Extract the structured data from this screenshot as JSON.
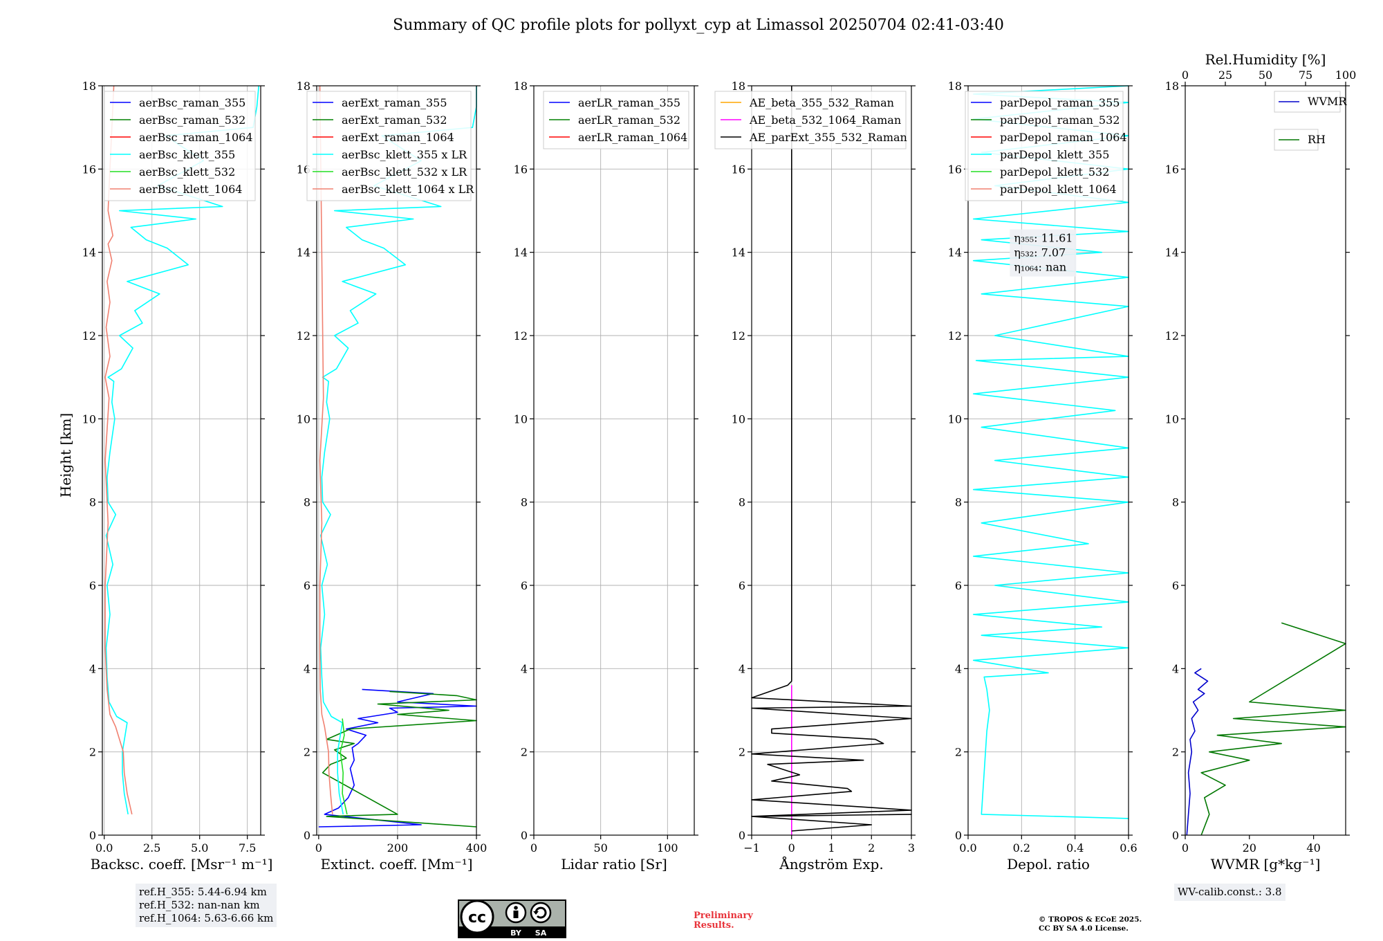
{
  "title": "Summary of QC profile plots for pollyxt_cyp at Limassol 20250704 02:41-03:40",
  "y_axis_label": "Height [km]",
  "y_ticks": [
    0,
    2,
    4,
    6,
    8,
    10,
    12,
    14,
    16,
    18
  ],
  "chart_data": [
    {
      "type": "line",
      "name": "backscatter",
      "xlabel": "Backsc. coeff. [Msr⁻¹ m⁻¹]",
      "ylabel": "Height [km]",
      "xlim": [
        -0.1,
        8.2
      ],
      "ylim": [
        0,
        18
      ],
      "xticks": [
        0,
        2.5,
        5,
        7.5
      ],
      "xtick_labels": [
        "0.0",
        "2.5",
        "5.0",
        "7.5"
      ],
      "grid": true,
      "legend_location": "top-right",
      "series": [
        {
          "name": "aerBsc_raman_355",
          "color": "#0000ff",
          "x": [],
          "y": []
        },
        {
          "name": "aerBsc_raman_532",
          "color": "#008000",
          "x": [],
          "y": []
        },
        {
          "name": "aerBsc_raman_1064",
          "color": "#ff0000",
          "x": [],
          "y": []
        },
        {
          "name": "aerBsc_klett_355",
          "color": "#00ffff",
          "x": [
            1.25,
            1.05,
            0.95,
            0.95,
            1.2,
            0.65,
            0.25,
            0.15,
            0.1,
            0.3,
            0.15,
            0.45,
            0.1,
            0.6,
            0.2,
            0.15,
            0.3,
            0.55,
            0.4,
            0.5,
            0.2,
            0.9,
            1.5,
            0.8,
            2.0,
            1.6,
            2.9,
            1.2,
            4.4,
            3.3,
            2.2,
            1.4,
            4.8,
            0.8,
            6.2,
            2.8,
            5.2,
            3.2,
            7.8,
            8.0,
            8.1
          ],
          "y": [
            0.5,
            1.0,
            1.5,
            2.0,
            2.7,
            2.85,
            3.2,
            3.8,
            4.5,
            5.3,
            6.0,
            6.5,
            7.2,
            7.7,
            8.0,
            8.6,
            9.2,
            10.0,
            10.4,
            10.9,
            11.0,
            11.2,
            11.7,
            12.0,
            12.3,
            12.6,
            13.0,
            13.3,
            13.7,
            14.1,
            14.3,
            14.6,
            14.8,
            15.0,
            15.1,
            15.6,
            16.2,
            16.8,
            17.0,
            17.5,
            18.0
          ]
        },
        {
          "name": "aerBsc_klett_532",
          "color": "#22dd22",
          "x": [],
          "y": []
        },
        {
          "name": "aerBsc_klett_1064",
          "color": "#f08070",
          "x": [
            1.45,
            1.2,
            1.05,
            1.0,
            0.6,
            0.3,
            0.15,
            0.05,
            0.05,
            0.2,
            0.05,
            0.25,
            0.05,
            0.3,
            0.1,
            0.3,
            0.15,
            0.4,
            0.2,
            0.45,
            0.2,
            0.3,
            0.5
          ],
          "y": [
            0.5,
            1.0,
            1.5,
            2.0,
            2.6,
            2.9,
            3.5,
            4.5,
            6.0,
            7.5,
            9.0,
            10.5,
            11.0,
            11.5,
            12.2,
            12.8,
            13.3,
            13.8,
            14.2,
            14.4,
            15.0,
            16.0,
            18.0
          ]
        }
      ],
      "reference_heights": [
        "ref.H_355: 5.44-6.94 km",
        "ref.H_532: nan-nan km",
        "ref.H_1064: 5.63-6.66 km"
      ]
    },
    {
      "type": "line",
      "name": "extinction",
      "xlabel": "Extinct. coeff. [Mm⁻¹]",
      "ylabel": "",
      "xlim": [
        -5,
        400
      ],
      "ylim": [
        0,
        18
      ],
      "xticks": [
        0,
        200,
        400
      ],
      "xtick_labels": [
        "0",
        "200",
        "400"
      ],
      "grid": true,
      "legend_location": "top-right",
      "series": [
        {
          "name": "aerExt_raman_355",
          "color": "#0000ff",
          "x": [
            0,
            260,
            15,
            50,
            75,
            90,
            80,
            90,
            85,
            100,
            120,
            70,
            150,
            100,
            200,
            180,
            400,
            200,
            290,
            110
          ],
          "y": [
            0.2,
            0.25,
            0.5,
            0.65,
            0.9,
            1.2,
            1.6,
            1.8,
            2.1,
            2.2,
            2.4,
            2.55,
            2.7,
            2.8,
            2.95,
            3.05,
            3.1,
            3.2,
            3.4,
            3.5
          ]
        },
        {
          "name": "aerExt_raman_532",
          "color": "#008000",
          "x": [
            400,
            20,
            200,
            10,
            30,
            70,
            40,
            90,
            20,
            80,
            400,
            200,
            330,
            150,
            400,
            350,
            180
          ],
          "y": [
            0.2,
            0.45,
            0.5,
            1.5,
            1.7,
            1.85,
            2.05,
            2.2,
            2.3,
            2.55,
            2.75,
            2.9,
            3.0,
            3.15,
            3.25,
            3.35,
            3.45
          ]
        },
        {
          "name": "aerExt_raman_1064",
          "color": "#ff0000",
          "x": [],
          "y": []
        },
        {
          "name": "aerBsc_klett_355 x LR",
          "color": "#00ffff",
          "x": [
            62,
            52,
            48,
            48,
            60,
            32,
            12,
            8,
            5,
            15,
            8,
            22,
            5,
            30,
            10,
            8,
            15,
            28,
            20,
            25,
            10,
            45,
            75,
            40,
            100,
            80,
            145,
            60,
            220,
            165,
            110,
            70,
            240,
            40,
            310,
            140,
            260,
            160,
            390,
            400,
            400
          ],
          "y": [
            0.5,
            1.0,
            1.5,
            2.0,
            2.7,
            2.85,
            3.2,
            3.8,
            4.5,
            5.3,
            6.0,
            6.5,
            7.2,
            7.7,
            8.0,
            8.6,
            9.2,
            10.0,
            10.4,
            10.9,
            11.0,
            11.2,
            11.7,
            12.0,
            12.3,
            12.6,
            13.0,
            13.3,
            13.7,
            14.1,
            14.3,
            14.6,
            14.8,
            15.0,
            15.1,
            15.6,
            16.2,
            16.8,
            17.0,
            17.5,
            18.0
          ]
        },
        {
          "name": "aerBsc_klett_532 x LR",
          "color": "#22dd22",
          "x": [
            72,
            60,
            62,
            55,
            65,
            60
          ],
          "y": [
            0.5,
            1.0,
            1.5,
            2.0,
            2.4,
            2.8
          ]
        },
        {
          "name": "aerBsc_klett_1064 x LR",
          "color": "#f08070",
          "x": [
            35,
            30,
            26,
            25,
            15,
            8,
            4,
            3,
            3,
            8,
            3,
            12,
            3
          ],
          "y": [
            0.5,
            1.0,
            1.5,
            2.0,
            2.6,
            2.9,
            3.5,
            4.5,
            6.0,
            7.5,
            9.0,
            10.5,
            18.0
          ]
        }
      ]
    },
    {
      "type": "line",
      "name": "lidar_ratio",
      "xlabel": "Lidar ratio [Sr]",
      "ylabel": "",
      "xlim": [
        0,
        120
      ],
      "ylim": [
        0,
        18
      ],
      "xticks": [
        0,
        50,
        100
      ],
      "xtick_labels": [
        "0",
        "50",
        "100"
      ],
      "grid": true,
      "legend_location": "top-right",
      "series": [
        {
          "name": "aerLR_raman_355",
          "color": "#0000ff",
          "x": [],
          "y": []
        },
        {
          "name": "aerLR_raman_532",
          "color": "#008000",
          "x": [],
          "y": []
        },
        {
          "name": "aerLR_raman_1064",
          "color": "#ff0000",
          "x": [],
          "y": []
        }
      ]
    },
    {
      "type": "line",
      "name": "angstrom",
      "xlabel": "Ångström Exp.",
      "ylabel": "",
      "xlim": [
        -1,
        3
      ],
      "ylim": [
        0,
        18
      ],
      "xticks": [
        -1,
        0,
        1,
        2,
        3
      ],
      "xtick_labels": [
        "−1",
        "0",
        "1",
        "2",
        "3"
      ],
      "grid": true,
      "legend_location": "top-right",
      "series": [
        {
          "name": "AE_beta_355_532_Raman",
          "color": "#ffa500",
          "x": [],
          "y": []
        },
        {
          "name": "AE_beta_532_1064_Raman",
          "color": "#ff00ff",
          "x": [
            0,
            0
          ],
          "y": [
            0,
            3.6
          ]
        },
        {
          "name": "AE_parExt_355_532_Raman",
          "color": "#000000",
          "x": [
            0,
            2.0,
            -1,
            3.0,
            -1,
            3.0,
            -1,
            1.5,
            1.4,
            -0.5,
            0.2,
            -0.6,
            1.8,
            -1,
            2.3,
            2.1,
            -0.5,
            -0.5,
            3.0,
            -1,
            3.0,
            -1,
            -0.1,
            0,
            0
          ],
          "y": [
            0.1,
            0.25,
            0.45,
            0.5,
            0.45,
            0.6,
            0.85,
            1.05,
            1.12,
            1.3,
            1.45,
            1.7,
            1.8,
            1.95,
            2.2,
            2.3,
            2.45,
            2.55,
            2.8,
            3.05,
            3.1,
            3.3,
            3.6,
            3.7,
            18.0
          ]
        }
      ]
    },
    {
      "type": "line",
      "name": "depolarization",
      "xlabel": "Depol. ratio",
      "ylabel": "",
      "xlim": [
        0,
        0.6
      ],
      "ylim": [
        0,
        18
      ],
      "xticks": [
        0,
        0.2,
        0.4,
        0.6
      ],
      "xtick_labels": [
        "0.0",
        "0.2",
        "0.4",
        "0.6"
      ],
      "grid": true,
      "legend_location": "top-right",
      "annotations": [
        "η₃₅₅: 11.61",
        "η₅₃₂: 7.07",
        "η₁₀₆₄: nan"
      ],
      "series": [
        {
          "name": "parDepol_raman_355",
          "color": "#0000ff",
          "x": [],
          "y": []
        },
        {
          "name": "parDepol_raman_532",
          "color": "#008000",
          "x": [],
          "y": []
        },
        {
          "name": "parDepol_raman_1064",
          "color": "#ff0000",
          "x": [],
          "y": []
        },
        {
          "name": "parDepol_klett_355",
          "color": "#00ffff",
          "x": [
            0.6,
            0.05,
            0.06,
            0.07,
            0.08,
            0.07,
            0.06,
            0.3,
            0.02,
            0.6,
            0.05,
            0.5,
            0.02,
            0.6,
            0.1,
            0.6,
            0.02,
            0.45,
            0.05,
            0.6,
            0.02,
            0.6,
            0.1,
            0.6,
            0.05,
            0.55,
            0.02,
            0.6,
            0.03,
            0.6,
            0.1,
            0.6,
            0.05,
            0.6,
            0.02,
            0.5,
            0.05,
            0.6,
            0.02,
            0.6,
            0.1,
            0.6,
            0.05,
            0.6,
            0.02,
            0.6,
            0.02,
            0.6
          ],
          "y": [
            0.4,
            0.5,
            1.5,
            2.5,
            3.0,
            3.5,
            3.8,
            3.9,
            4.2,
            4.5,
            4.8,
            5.0,
            5.3,
            5.6,
            6.0,
            6.3,
            6.7,
            7.0,
            7.5,
            8.0,
            8.3,
            8.6,
            9.0,
            9.3,
            9.8,
            10.2,
            10.6,
            11.0,
            11.4,
            11.5,
            12.0,
            12.7,
            13.0,
            13.4,
            13.8,
            14.0,
            14.3,
            14.5,
            14.8,
            15.2,
            15.6,
            16.0,
            16.4,
            16.8,
            17.2,
            17.6,
            17.8,
            18.0
          ]
        },
        {
          "name": "parDepol_klett_532",
          "color": "#22dd22",
          "x": [],
          "y": []
        },
        {
          "name": "parDepol_klett_1064",
          "color": "#f08070",
          "x": [],
          "y": []
        }
      ]
    },
    {
      "type": "line",
      "name": "water_vapor",
      "xlabel": "WVMR [g*kg⁻¹]",
      "ylabel": "",
      "xlim": [
        0,
        50
      ],
      "ylim": [
        0,
        18
      ],
      "xticks": [
        0,
        20,
        40
      ],
      "xtick_labels": [
        "0",
        "20",
        "40"
      ],
      "top_xlabel": "Rel.Humidity [%]",
      "top_xlim": [
        0,
        100
      ],
      "top_xticks": [
        0,
        25,
        50,
        75,
        100
      ],
      "top_xtick_labels": [
        "0",
        "25",
        "50",
        "75",
        "100"
      ],
      "grid": false,
      "legend_location": "top-right",
      "wv_calibration": "WV-calib.const.: 3.8",
      "series": [
        {
          "name": "WVMR",
          "color": "#0000cc",
          "x": [
            0.5,
            1.0,
            1.5,
            1.0,
            2.0,
            1.5,
            3.0,
            2.0,
            4.0,
            2.5,
            6.0,
            4.0,
            7.0,
            3.0,
            5.0
          ],
          "y": [
            0.0,
            0.5,
            1.0,
            1.5,
            2.0,
            2.3,
            2.5,
            2.8,
            3.0,
            3.2,
            3.4,
            3.5,
            3.7,
            3.9,
            4.0
          ]
        },
        {
          "name": "RH",
          "color": "#007700",
          "x": [
            10,
            15,
            12,
            25,
            10,
            40,
            15,
            60,
            20,
            100,
            30,
            100,
            40,
            100,
            60
          ],
          "y": [
            0.0,
            0.5,
            0.9,
            1.2,
            1.5,
            1.8,
            2.0,
            2.2,
            2.4,
            2.6,
            2.8,
            3.0,
            3.2,
            4.6,
            5.1
          ]
        }
      ]
    }
  ],
  "footer": {
    "cc_license_badge": {
      "icon": "cc-by-sa-icon",
      "by_label": "BY",
      "sa_label": "SA"
    },
    "preliminary_line1": "Preliminary",
    "preliminary_line2": "Results.",
    "copyright_line1": "© TROPOS & ECoE 2025.",
    "copyright_line2": "CC BY SA 4.0 License."
  }
}
